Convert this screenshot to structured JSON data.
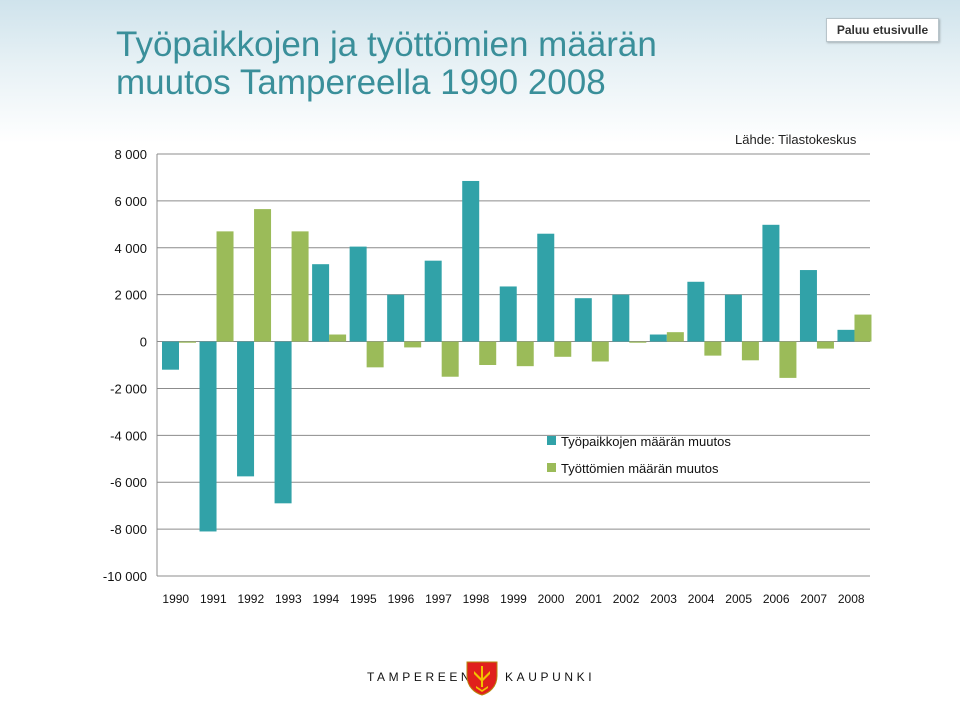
{
  "header": {
    "title_line1": "Työpaikkojen ja työttömien määrän",
    "title_line2": "muutos Tampereella 1990 2008",
    "home_button_label": "Paluu etusivulle"
  },
  "source_note": "Lähde: Tilastokeskus",
  "footer": {
    "left_text": "TAMPEREEN",
    "right_text": "KAUPUNKI",
    "logo_icon": "tampere-coat-of-arms-icon"
  },
  "colors": {
    "series_jobs": "#31a2a8",
    "series_unemployed": "#9bbb59",
    "title": "#3a8f9a"
  },
  "chart_data": {
    "type": "bar",
    "title": "",
    "xlabel": "",
    "ylabel": "",
    "ylim": [
      -10000,
      8000
    ],
    "yticks": [
      8000,
      6000,
      4000,
      2000,
      0,
      -2000,
      -4000,
      -6000,
      -8000,
      -10000
    ],
    "ytick_labels": [
      "8 000",
      "6 000",
      "4 000",
      "2 000",
      "0",
      "-2 000",
      "-4 000",
      "-6 000",
      "-8 000",
      "-10 000"
    ],
    "grid": "horizontal",
    "legend_position": "lower-right",
    "categories": [
      "1990",
      "1991",
      "1992",
      "1993",
      "1994",
      "1995",
      "1996",
      "1997",
      "1998",
      "1999",
      "2000",
      "2001",
      "2002",
      "2003",
      "2004",
      "2005",
      "2006",
      "2007",
      "2008"
    ],
    "series": [
      {
        "name": "Työpaikkojen määrän muutos",
        "color": "#31a2a8",
        "values": [
          -1200,
          -8100,
          -5750,
          -6900,
          3300,
          4050,
          2000,
          3450,
          6850,
          2350,
          4600,
          1850,
          2000,
          300,
          2550,
          2000,
          4980,
          3050,
          500
        ]
      },
      {
        "name": "Työttömien määrän muutos",
        "color": "#9bbb59",
        "values": [
          -50,
          4700,
          5650,
          4700,
          300,
          -1100,
          -250,
          -1500,
          -1000,
          -1050,
          -650,
          -850,
          -50,
          400,
          -600,
          -800,
          -1550,
          -300,
          1150
        ]
      }
    ]
  }
}
